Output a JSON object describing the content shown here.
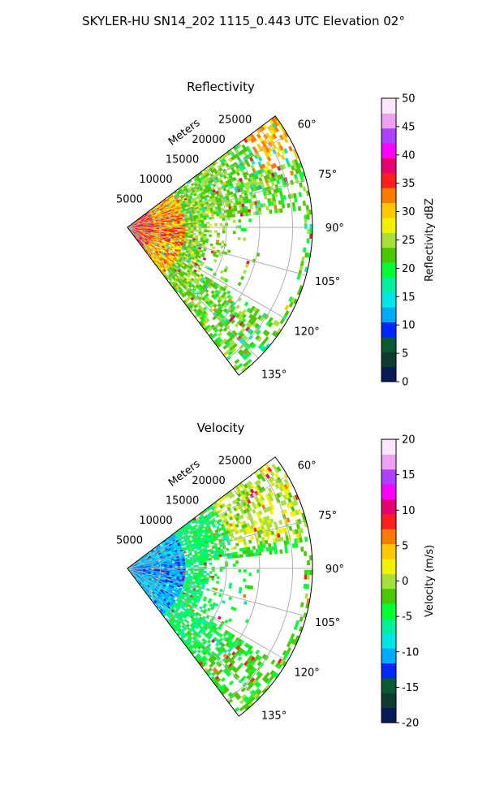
{
  "suptitle": "SKYLER-HU  SN14_202  1115_0.443 UTC Elevation 02°",
  "chart_data": [
    {
      "type": "heatmap",
      "title": "Reflectivity",
      "radial_label": "Meters",
      "range_ticks": [
        5000,
        10000,
        15000,
        20000,
        25000
      ],
      "range_tick_labels": [
        "5000",
        "10000",
        "15000",
        "20000",
        "25000"
      ],
      "range_limit": [
        0,
        28000
      ],
      "azimuth_ticks": [
        60,
        75,
        90,
        105,
        120,
        135
      ],
      "azimuth_tick_labels": [
        "60°",
        "75°",
        "90°",
        "105°",
        "120°",
        "135°"
      ],
      "azimuth_limit": [
        53,
        143
      ],
      "grid": true,
      "colorbar": {
        "label": "Reflectivity dBZ",
        "range": [
          0,
          50
        ],
        "ticks": [
          0,
          5,
          10,
          15,
          20,
          25,
          30,
          35,
          40,
          45,
          50
        ],
        "tick_labels": [
          "0",
          "5",
          "10",
          "15",
          "20",
          "25",
          "30",
          "35",
          "40",
          "45",
          "50"
        ]
      },
      "colormap": [
        "#081b54",
        "#0d3b2e",
        "#0a5a34",
        "#0026ff",
        "#00aaff",
        "#00e5e5",
        "#00f0a0",
        "#00ff33",
        "#4ac800",
        "#a6e03a",
        "#f2f200",
        "#ffc800",
        "#ff7a00",
        "#ff1e1e",
        "#e60073",
        "#ff00ff",
        "#b040ff",
        "#f0a0f0",
        "#fce6fa"
      ]
    },
    {
      "type": "heatmap",
      "title": "Velocity",
      "radial_label": "Meters",
      "range_ticks": [
        5000,
        10000,
        15000,
        20000,
        25000
      ],
      "range_tick_labels": [
        "5000",
        "10000",
        "15000",
        "20000",
        "25000"
      ],
      "range_limit": [
        0,
        28000
      ],
      "azimuth_ticks": [
        60,
        75,
        90,
        105,
        120,
        135
      ],
      "azimuth_tick_labels": [
        "60°",
        "75°",
        "90°",
        "105°",
        "120°",
        "135°"
      ],
      "azimuth_limit": [
        53,
        143
      ],
      "grid": true,
      "colorbar": {
        "label": "Velocity (m/s)",
        "range": [
          -20,
          20
        ],
        "ticks": [
          -20,
          -15,
          -10,
          -5,
          0,
          5,
          10,
          15,
          20
        ],
        "tick_labels": [
          "-20",
          "-15",
          "-10",
          "-5",
          "0",
          "5",
          "10",
          "15",
          "20"
        ]
      },
      "colormap": [
        "#081b54",
        "#0d3b2e",
        "#0a5a34",
        "#0026ff",
        "#00aaff",
        "#00e5e5",
        "#00f0a0",
        "#00ff33",
        "#4ac800",
        "#a6e03a",
        "#f2f200",
        "#ffc800",
        "#ff7a00",
        "#ff1e1e",
        "#e60073",
        "#ff00ff",
        "#b040ff",
        "#f0a0f0",
        "#fce6fa"
      ]
    }
  ]
}
